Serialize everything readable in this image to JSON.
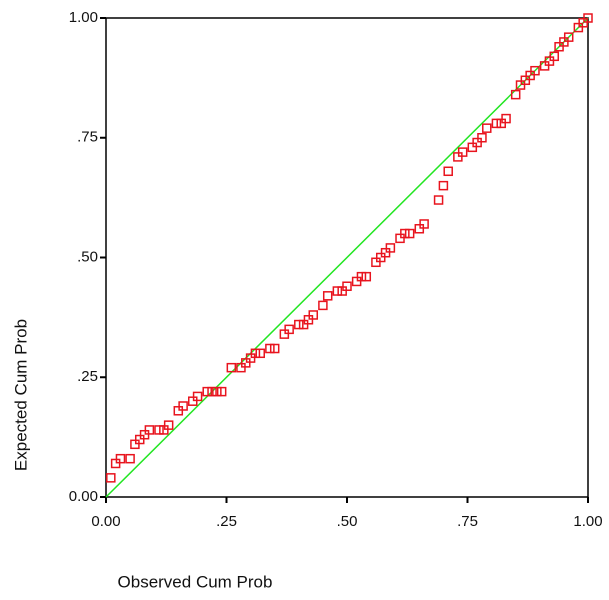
{
  "chart_data": {
    "type": "scatter",
    "xlabel": "Observed Cum Prob",
    "ylabel": "Expected Cum Prob",
    "xlim": [
      0,
      1
    ],
    "ylim": [
      0,
      1
    ],
    "xticks": [
      {
        "value": 0,
        "label": "0.00"
      },
      {
        "value": 0.25,
        "label": ".25"
      },
      {
        "value": 0.5,
        "label": ".50"
      },
      {
        "value": 0.75,
        "label": ".75"
      },
      {
        "value": 1,
        "label": "1.00"
      }
    ],
    "yticks": [
      {
        "value": 0,
        "label": "0.00"
      },
      {
        "value": 0.25,
        "label": ".25"
      },
      {
        "value": 0.5,
        "label": ".50"
      },
      {
        "value": 0.75,
        "label": ".75"
      },
      {
        "value": 1,
        "label": "1.00"
      }
    ],
    "color": "#e8141e",
    "reference_line": true,
    "reference_color": "#22e622",
    "x": [
      0.01,
      0.02,
      0.03,
      0.05,
      0.06,
      0.07,
      0.08,
      0.09,
      0.11,
      0.12,
      0.13,
      0.15,
      0.16,
      0.18,
      0.19,
      0.21,
      0.22,
      0.23,
      0.24,
      0.26,
      0.28,
      0.29,
      0.3,
      0.31,
      0.32,
      0.34,
      0.35,
      0.37,
      0.38,
      0.4,
      0.41,
      0.42,
      0.43,
      0.45,
      0.46,
      0.48,
      0.49,
      0.5,
      0.52,
      0.53,
      0.54,
      0.56,
      0.57,
      0.58,
      0.59,
      0.61,
      0.62,
      0.63,
      0.65,
      0.66,
      0.69,
      0.7,
      0.71,
      0.73,
      0.74,
      0.76,
      0.77,
      0.78,
      0.79,
      0.81,
      0.82,
      0.83,
      0.85,
      0.86,
      0.87,
      0.88,
      0.89,
      0.91,
      0.92,
      0.93,
      0.94,
      0.95,
      0.96,
      0.98,
      0.99,
      1.0
    ],
    "values": [
      0.04,
      0.07,
      0.08,
      0.08,
      0.11,
      0.12,
      0.13,
      0.14,
      0.14,
      0.14,
      0.15,
      0.18,
      0.19,
      0.2,
      0.21,
      0.22,
      0.22,
      0.22,
      0.22,
      0.27,
      0.27,
      0.28,
      0.29,
      0.3,
      0.3,
      0.31,
      0.31,
      0.34,
      0.35,
      0.36,
      0.36,
      0.37,
      0.38,
      0.4,
      0.42,
      0.43,
      0.43,
      0.44,
      0.45,
      0.46,
      0.46,
      0.49,
      0.5,
      0.51,
      0.52,
      0.54,
      0.55,
      0.55,
      0.56,
      0.57,
      0.62,
      0.65,
      0.68,
      0.71,
      0.72,
      0.73,
      0.74,
      0.75,
      0.77,
      0.78,
      0.78,
      0.79,
      0.84,
      0.86,
      0.87,
      0.88,
      0.89,
      0.9,
      0.91,
      0.92,
      0.94,
      0.95,
      0.96,
      0.98,
      0.99,
      1.0
    ]
  }
}
